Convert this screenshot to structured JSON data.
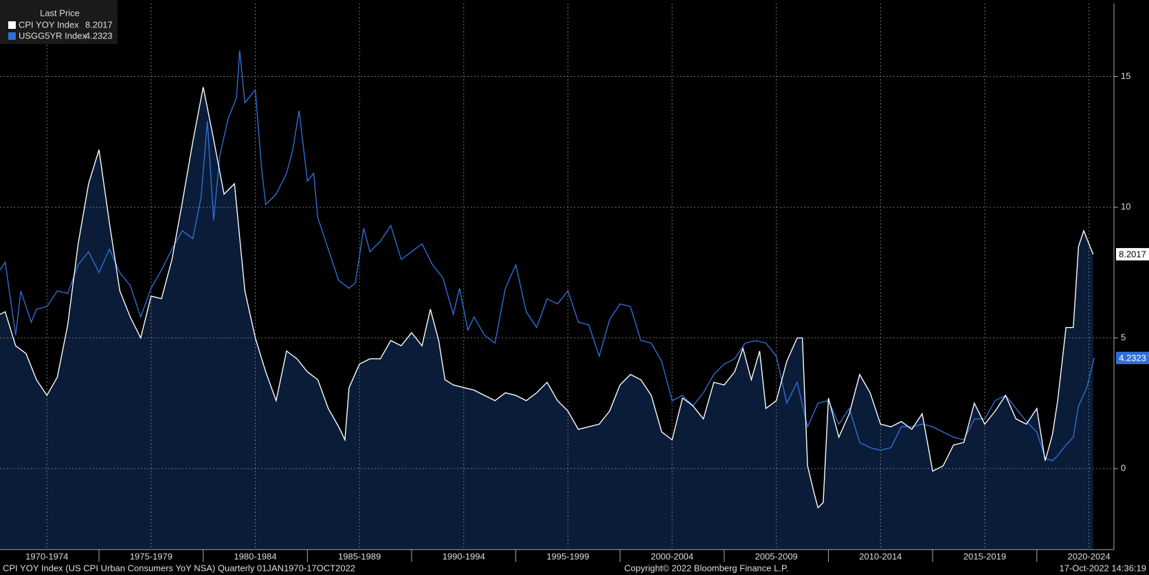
{
  "chart_data": {
    "type": "line",
    "legend_title": "Last Price",
    "legend_position": "upper-left",
    "grid": true,
    "xlim": [
      1970.25,
      2023.7
    ],
    "ylim": [
      -3.1,
      17.8
    ],
    "yticks": [
      0,
      5,
      10,
      15
    ],
    "xticks": [
      {
        "value": 1972.5,
        "label": "1970-1974"
      },
      {
        "value": 1977.5,
        "label": "1975-1979"
      },
      {
        "value": 1982.5,
        "label": "1980-1984"
      },
      {
        "value": 1987.5,
        "label": "1985-1989"
      },
      {
        "value": 1992.5,
        "label": "1990-1994"
      },
      {
        "value": 1997.5,
        "label": "1995-1999"
      },
      {
        "value": 2002.5,
        "label": "2000-2004"
      },
      {
        "value": 2007.5,
        "label": "2005-2009"
      },
      {
        "value": 2012.5,
        "label": "2010-2014"
      },
      {
        "value": 2017.5,
        "label": "2015-2019"
      },
      {
        "value": 2022.5,
        "label": "2020-2024"
      }
    ],
    "series": [
      {
        "name": "CPI YOY Index",
        "last": 8.2017,
        "color": "#ffffff",
        "fill": "#0b1c38",
        "area": true,
        "x": [
          1970.25,
          1970.5,
          1971,
          1971.5,
          1972,
          1972.5,
          1973,
          1973.5,
          1974,
          1974.5,
          1975,
          1975.5,
          1976,
          1976.5,
          1977,
          1977.5,
          1978,
          1978.5,
          1979,
          1979.5,
          1980,
          1980.5,
          1981,
          1981.5,
          1982,
          1982.5,
          1983,
          1983.5,
          1984,
          1984.5,
          1985,
          1985.5,
          1986,
          1986.5,
          1986.8,
          1987,
          1987.5,
          1988,
          1988.5,
          1989,
          1989.5,
          1990,
          1990.5,
          1990.9,
          1991.3,
          1991.6,
          1992,
          1992.5,
          1993,
          1993.5,
          1994,
          1994.5,
          1995,
          1995.5,
          1996,
          1996.5,
          1997,
          1997.5,
          1998,
          1998.5,
          1999,
          1999.5,
          2000,
          2000.5,
          2001,
          2001.5,
          2002,
          2002.5,
          2003,
          2003.5,
          2004,
          2004.5,
          2005,
          2005.5,
          2005.9,
          2006.3,
          2006.7,
          2007,
          2007.5,
          2008,
          2008.5,
          2008.75,
          2009,
          2009.3,
          2009.5,
          2009.75,
          2010,
          2010.5,
          2011,
          2011.5,
          2012,
          2012.5,
          2013,
          2013.5,
          2014,
          2014.5,
          2015,
          2015.5,
          2016,
          2016.5,
          2017,
          2017.5,
          2018,
          2018.5,
          2019,
          2019.5,
          2020,
          2020.4,
          2020.75,
          2021,
          2021.4,
          2021.75,
          2022,
          2022.25,
          2022.7
        ],
        "values": [
          5.9,
          6.0,
          4.7,
          4.4,
          3.4,
          2.8,
          3.5,
          5.5,
          8.6,
          10.9,
          12.2,
          9.4,
          6.8,
          5.8,
          5.0,
          6.6,
          6.5,
          8.0,
          10.2,
          12.5,
          14.6,
          12.6,
          10.5,
          10.9,
          6.8,
          5.0,
          3.7,
          2.6,
          4.5,
          4.2,
          3.7,
          3.4,
          2.3,
          1.6,
          1.1,
          3.1,
          4.0,
          4.2,
          4.2,
          4.9,
          4.7,
          5.2,
          4.7,
          6.1,
          4.9,
          3.4,
          3.2,
          3.1,
          3.0,
          2.8,
          2.6,
          2.9,
          2.8,
          2.6,
          2.9,
          3.3,
          2.6,
          2.2,
          1.5,
          1.6,
          1.7,
          2.2,
          3.2,
          3.6,
          3.4,
          2.8,
          1.4,
          1.1,
          2.7,
          2.4,
          1.9,
          3.3,
          3.2,
          3.7,
          4.6,
          3.4,
          4.5,
          2.3,
          2.6,
          4.1,
          5.0,
          5.0,
          0.1,
          -0.9,
          -1.5,
          -1.3,
          2.7,
          1.2,
          2.1,
          3.6,
          2.9,
          1.7,
          1.6,
          1.8,
          1.5,
          2.1,
          -0.1,
          0.1,
          0.9,
          1.0,
          2.5,
          1.7,
          2.2,
          2.8,
          1.9,
          1.7,
          2.3,
          0.3,
          1.3,
          2.6,
          5.4,
          5.4,
          8.5,
          9.1,
          8.2017
        ]
      },
      {
        "name": "USGG5YR Index",
        "last": 4.2323,
        "color": "#2f6fd6",
        "tag_text": "#ffffff",
        "x": [
          1970.25,
          1970.5,
          1971,
          1971.25,
          1971.75,
          1972,
          1972.5,
          1973,
          1973.5,
          1974,
          1974.5,
          1975,
          1975.5,
          1976,
          1976.5,
          1977,
          1977.5,
          1978,
          1978.5,
          1979,
          1979.5,
          1979.9,
          1980.2,
          1980.5,
          1980.8,
          1981.2,
          1981.6,
          1981.75,
          1982,
          1982.5,
          1982.8,
          1983,
          1983.5,
          1984,
          1984.3,
          1984.6,
          1985,
          1985.3,
          1985.5,
          1986,
          1986.5,
          1987,
          1987.3,
          1987.7,
          1988,
          1988.5,
          1989,
          1989.5,
          1990,
          1990.5,
          1991,
          1991.5,
          1992,
          1992.3,
          1992.7,
          1993,
          1993.5,
          1994,
          1994.5,
          1995,
          1995.5,
          1996,
          1996.5,
          1997,
          1997.5,
          1998,
          1998.5,
          1999,
          1999.5,
          2000,
          2000.5,
          2001,
          2001.5,
          2002,
          2002.5,
          2003,
          2003.5,
          2004,
          2004.5,
          2005,
          2005.5,
          2006,
          2006.5,
          2007,
          2007.5,
          2008,
          2008.5,
          2009,
          2009.5,
          2010,
          2010.5,
          2011,
          2011.5,
          2012,
          2012.5,
          2013,
          2013.5,
          2014,
          2014.5,
          2015,
          2015.5,
          2016,
          2016.5,
          2017,
          2017.5,
          2018,
          2018.5,
          2019,
          2019.5,
          2020,
          2020.4,
          2020.75,
          2021,
          2021.4,
          2021.75,
          2022,
          2022.4,
          2022.75
        ],
        "values": [
          7.6,
          7.9,
          5.1,
          6.8,
          5.6,
          6.1,
          6.2,
          6.8,
          6.7,
          7.8,
          8.3,
          7.5,
          8.4,
          7.5,
          7.0,
          5.8,
          6.9,
          7.6,
          8.4,
          9.1,
          8.8,
          10.4,
          13.3,
          9.5,
          12.0,
          13.4,
          14.2,
          16.0,
          14.0,
          14.5,
          11.5,
          10.1,
          10.5,
          11.3,
          12.2,
          13.7,
          11.0,
          11.3,
          9.6,
          8.4,
          7.2,
          6.9,
          7.1,
          9.2,
          8.3,
          8.7,
          9.3,
          8.0,
          8.3,
          8.6,
          7.8,
          7.3,
          5.9,
          6.9,
          5.3,
          5.8,
          5.1,
          4.8,
          6.9,
          7.8,
          6.0,
          5.4,
          6.5,
          6.3,
          6.8,
          5.6,
          5.5,
          4.3,
          5.7,
          6.3,
          6.2,
          4.9,
          4.8,
          4.1,
          2.6,
          2.8,
          2.4,
          2.9,
          3.6,
          4.0,
          4.2,
          4.8,
          4.9,
          4.8,
          4.3,
          2.5,
          3.3,
          1.6,
          2.5,
          2.6,
          1.7,
          2.3,
          1.0,
          0.8,
          0.7,
          0.8,
          1.6,
          1.6,
          1.7,
          1.6,
          1.4,
          1.2,
          1.1,
          1.9,
          1.9,
          2.6,
          2.8,
          2.3,
          1.8,
          1.4,
          0.4,
          0.3,
          0.5,
          0.9,
          1.2,
          2.4,
          3.1,
          4.2323
        ]
      }
    ],
    "footer_left": "CPI YOY Index (US CPI Urban Consumers YoY NSA)  Quarterly 01JAN1970-17OCT2022",
    "copyright": "Copyright© 2022 Bloomberg Finance L.P.",
    "timestamp": "17-Oct-2022 14:36:19"
  }
}
